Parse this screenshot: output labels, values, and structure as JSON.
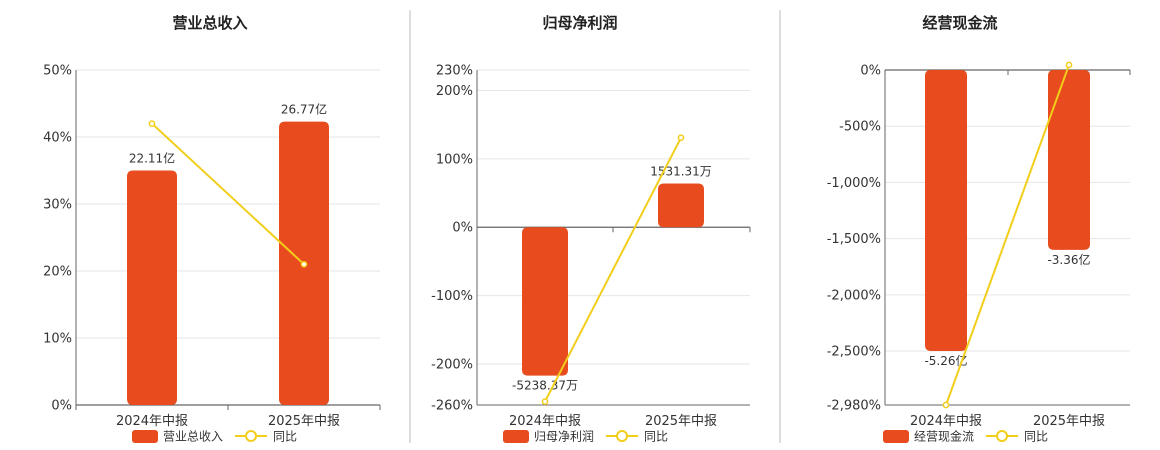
{
  "colors": {
    "bar": "#E84C1E",
    "line": "#F2CE1A",
    "grid": "#E6E6E6",
    "axis": "#666666",
    "divider": "#BBBBBB"
  },
  "chart_data": [
    {
      "type": "bar",
      "title": "营业总收入",
      "categories": [
        "2024年中报",
        "2025年中报"
      ],
      "series": [
        {
          "name": "营业总收入",
          "type": "bar",
          "values": [
            35,
            42.3
          ],
          "labels": [
            "22.11亿",
            "26.77亿"
          ]
        },
        {
          "name": "同比",
          "type": "line",
          "values": [
            42,
            21
          ]
        }
      ],
      "yticks": [
        "0%",
        "10%",
        "20%",
        "30%",
        "40%",
        "50%"
      ],
      "ytick_values": [
        0,
        10,
        20,
        30,
        40,
        50
      ],
      "ylim": [
        0,
        50
      ],
      "grid": true,
      "legend_position": "bottom"
    },
    {
      "type": "bar",
      "title": "归母净利润",
      "categories": [
        "2024年中报",
        "2025年中报"
      ],
      "series": [
        {
          "name": "归母净利润",
          "type": "bar",
          "values": [
            -217,
            64
          ],
          "labels": [
            "-5238.37万",
            "1531.31万"
          ]
        },
        {
          "name": "同比",
          "type": "line",
          "values": [
            -255,
            131
          ]
        }
      ],
      "yticks": [
        "-260%",
        "-200%",
        "-100%",
        "0%",
        "100%",
        "200%",
        "230%"
      ],
      "ytick_values": [
        -260,
        -200,
        -100,
        0,
        100,
        200,
        230
      ],
      "ylim": [
        -260,
        230
      ],
      "grid": true,
      "legend_position": "bottom"
    },
    {
      "type": "bar",
      "title": "经营现金流",
      "categories": [
        "2024年中报",
        "2025年中报"
      ],
      "series": [
        {
          "name": "经营现金流",
          "type": "bar",
          "values": [
            -2500,
            -1600
          ],
          "labels": [
            "-5.26亿",
            "-3.36亿"
          ]
        },
        {
          "name": "同比",
          "type": "line",
          "values": [
            -2980,
            45
          ]
        }
      ],
      "yticks": [
        "-2,980%",
        "-2,500%",
        "-2,000%",
        "-1,500%",
        "-1,000%",
        "-500%",
        "0%"
      ],
      "ytick_values": [
        -2980,
        -2500,
        -2000,
        -1500,
        -1000,
        -500,
        0
      ],
      "ylim": [
        -2980,
        0
      ],
      "grid": true,
      "legend_position": "bottom"
    }
  ]
}
